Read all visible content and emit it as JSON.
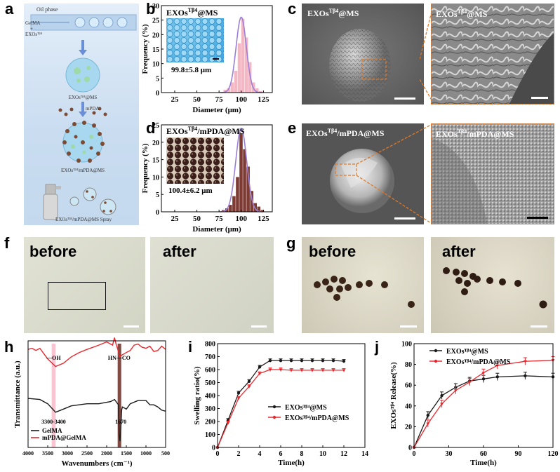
{
  "panels": {
    "a": {
      "label": "a",
      "oil_phase": "Oil phase",
      "gelma": "GelMA",
      "plus": "+",
      "exos": "EXOsᵀᵝ⁴",
      "step1": "EXOsᵀᵝ⁴@MS",
      "mpda": "mPDA",
      "step2": "EXOsᵀᵝ⁴/mPDA@MS",
      "step3": "EXOsᵀᵝ⁴/mPDA@MS Spray"
    },
    "b": {
      "label": "b",
      "title_main": "EXOs",
      "title_sup": "Tβ4",
      "title_tail": "@MS",
      "inset_size": "99.8±5.8 μm"
    },
    "c": {
      "label": "c",
      "left_main": "EXOs",
      "left_sup": "Tβ4",
      "left_tail": "@MS",
      "right_main": "EXOs",
      "right_sup": "Tβ4",
      "right_tail": "@MS"
    },
    "d": {
      "label": "d",
      "title_main": "EXOs",
      "title_sup": "Tβ4",
      "title_tail": "/mPDA@MS",
      "inset_size": "100.4±6.2 μm"
    },
    "e": {
      "label": "e",
      "left_main": "EXOs",
      "left_sup": "Tβ4",
      "left_tail": "/mPDA@MS",
      "right_main": "EXOs",
      "right_sup": "Tβ4",
      "right_tail": "/mPDA@MS"
    },
    "f": {
      "label": "f",
      "before": "before",
      "after": "after"
    },
    "g": {
      "label": "g",
      "before": "before",
      "after": "after"
    },
    "h": {
      "label": "h"
    },
    "i": {
      "label": "i"
    },
    "j": {
      "label": "j"
    }
  },
  "colors": {
    "pink_bar": "#f4b7c4",
    "brown_bar": "#7d3b34",
    "red": "#e8282f",
    "black": "#1a1a1a",
    "orange_box": "#e07a2a",
    "blue_bg": "#cde0f2"
  },
  "chart_data": [
    {
      "id": "b",
      "type": "bar",
      "xlabel": "Diameter (μm)",
      "ylabel": "Frequency (%)",
      "xlim": [
        10,
        135
      ],
      "ylim": [
        0,
        30
      ],
      "xticks": [
        25,
        50,
        75,
        100,
        125
      ],
      "yticks": [
        0,
        5,
        10,
        15,
        20,
        25,
        30
      ],
      "bins": [
        80,
        84,
        88,
        92,
        96,
        100,
        104,
        108,
        112,
        116,
        120
      ],
      "values": [
        1,
        1.5,
        3.5,
        7.5,
        17,
        25.5,
        19,
        10.5,
        3.5,
        1.5,
        0.5
      ],
      "fit": {
        "type": "gaussian",
        "mean": 100,
        "sd": 5.8,
        "peak": 26
      }
    },
    {
      "id": "d",
      "type": "bar",
      "xlabel": "Diameter (μm)",
      "ylabel": "Frequency (%)",
      "xlim": [
        10,
        135
      ],
      "ylim": [
        0,
        25
      ],
      "xticks": [
        25,
        50,
        75,
        100,
        125
      ],
      "yticks": [
        0,
        5,
        10,
        15,
        20,
        25
      ],
      "bins": [
        78,
        82,
        86,
        90,
        94,
        98,
        102,
        106,
        110,
        114,
        118,
        122
      ],
      "values": [
        0.5,
        1,
        2,
        4.5,
        10,
        22.5,
        18,
        13,
        6,
        2.5,
        1.5,
        0.5
      ],
      "fit": {
        "type": "gaussian",
        "mean": 100,
        "sd": 6.2,
        "peak": 24
      }
    },
    {
      "id": "h",
      "type": "line",
      "xlabel": "Wavenumbers (cm⁻¹)",
      "ylabel": "Transmittance (a.u.)",
      "xlim": [
        4000,
        500
      ],
      "xticks": [
        4000,
        3500,
        3000,
        2500,
        2000,
        1500,
        1000,
        500
      ],
      "ylim": [
        0,
        10
      ],
      "annotations": [
        "—OH",
        "HN—CO",
        "3300-3400",
        "1670"
      ],
      "series": [
        {
          "name": "GelMA",
          "color": "#1a1a1a",
          "x": [
            4000,
            3700,
            3500,
            3300,
            3100,
            2900,
            2700,
            2500,
            2200,
            1900,
            1800,
            1700,
            1680,
            1660,
            1640,
            1620,
            1600,
            1500,
            1400,
            1200,
            1000,
            900,
            800,
            700,
            600,
            500
          ],
          "y": [
            4.6,
            4.5,
            4.1,
            3.3,
            3.6,
            3.9,
            4.0,
            4.1,
            4.1,
            4.3,
            4.5,
            4.0,
            1.2,
            0.6,
            1.8,
            3.5,
            3.8,
            3.6,
            4.1,
            4.4,
            4.4,
            4.0,
            4.0,
            3.8,
            3.5,
            3.4
          ]
        },
        {
          "name": "mPDA@GelMA",
          "color": "#e8282f",
          "x": [
            4000,
            3900,
            3800,
            3700,
            3600,
            3500,
            3300,
            3100,
            2900,
            2700,
            2500,
            2200,
            2000,
            1850,
            1800,
            1760,
            1700,
            1680,
            1660,
            1640,
            1600,
            1500,
            1400,
            1300,
            1200,
            1100,
            1000,
            900,
            800,
            700,
            600,
            500
          ],
          "y": [
            9.2,
            9.3,
            9.1,
            9.3,
            8.8,
            8.3,
            7.6,
            7.9,
            8.5,
            8.9,
            9.2,
            9.6,
            9.9,
            9.6,
            10.3,
            9.7,
            9.0,
            8.7,
            8.5,
            8.6,
            8.7,
            8.9,
            9.1,
            9.6,
            9.7,
            9.4,
            9.3,
            9.5,
            9.0,
            9.1,
            9.5,
            9.2
          ]
        }
      ]
    },
    {
      "id": "i",
      "type": "line",
      "xlabel": "Time(h)",
      "ylabel": "Swelling ratio(%)",
      "xlim": [
        0,
        14
      ],
      "ylim": [
        0,
        800
      ],
      "xticks": [
        0,
        2,
        4,
        6,
        8,
        10,
        12,
        14
      ],
      "yticks": [
        0,
        100,
        200,
        300,
        400,
        500,
        600,
        700,
        800
      ],
      "series": [
        {
          "name": "EXOsᵀᵝ⁴@MS",
          "color": "#1a1a1a",
          "x": [
            0,
            1,
            2,
            3,
            4,
            5,
            6,
            7,
            8,
            9,
            10,
            11,
            12
          ],
          "y": [
            0,
            210,
            420,
            510,
            620,
            670,
            670,
            670,
            670,
            670,
            670,
            670,
            665
          ]
        },
        {
          "name": "EXOsᵀᵝ⁴/mPDA@MS",
          "color": "#e8282f",
          "x": [
            0,
            1,
            2,
            3,
            4,
            5,
            6,
            7,
            8,
            9,
            10,
            11,
            12
          ],
          "y": [
            0,
            190,
            380,
            470,
            570,
            600,
            600,
            595,
            595,
            595,
            595,
            595,
            595
          ]
        }
      ]
    },
    {
      "id": "j",
      "type": "line",
      "xlabel": "Time(h)",
      "ylabel": "EXOsᵀᵝ⁴ Release(%)",
      "xlim": [
        0,
        120
      ],
      "ylim": [
        0,
        100
      ],
      "xticks": [
        0,
        30,
        60,
        90,
        120
      ],
      "yticks": [
        0,
        20,
        40,
        60,
        80,
        100
      ],
      "series": [
        {
          "name": "EXOsᵀᵝ⁴@MS",
          "color": "#1a1a1a",
          "x": [
            0,
            12,
            24,
            36,
            48,
            60,
            72,
            96,
            120
          ],
          "y": [
            0,
            31,
            50,
            58,
            64,
            66,
            68,
            69,
            68
          ]
        },
        {
          "name": "EXOsᵀᵝ⁴/mPDA@MS",
          "color": "#e8282f",
          "x": [
            0,
            12,
            24,
            36,
            48,
            60,
            72,
            96,
            120
          ],
          "y": [
            0,
            23,
            42,
            55,
            63,
            72,
            79,
            83,
            84
          ]
        }
      ]
    }
  ]
}
